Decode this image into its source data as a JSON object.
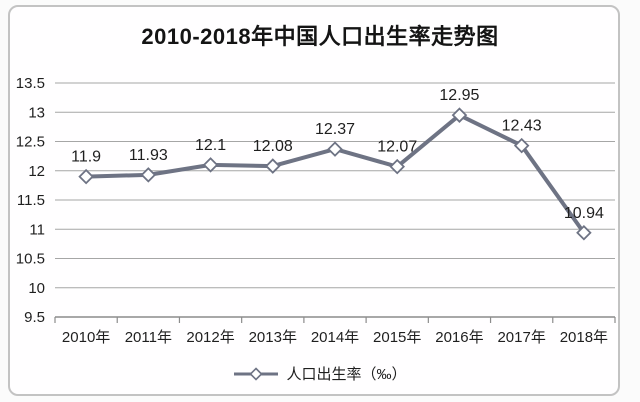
{
  "chart_data": {
    "type": "line",
    "title": "2010-2018年中国人口出生率走势图",
    "categories": [
      "2010年",
      "2011年",
      "2012年",
      "2013年",
      "2014年",
      "2015年",
      "2016年",
      "2017年",
      "2018年"
    ],
    "series": [
      {
        "name": "人口出生率（‰）",
        "values": [
          11.9,
          11.93,
          12.1,
          12.08,
          12.37,
          12.07,
          12.95,
          12.43,
          10.94
        ]
      }
    ],
    "data_labels": [
      "11.9",
      "11.93",
      "12.1",
      "12.08",
      "12.37",
      "12.07",
      "12.95",
      "12.43",
      "10.94"
    ],
    "ylim": [
      9.5,
      13.5
    ],
    "ytick_step": 0.5,
    "ytick_labels": [
      "9.5",
      "10",
      "10.5",
      "11",
      "11.5",
      "12",
      "12.5",
      "13",
      "13.5"
    ],
    "grid": true,
    "legend_position": "bottom",
    "marker": "diamond-open",
    "colors": {
      "line": "#6e7384",
      "marker_fill": "#ffffff",
      "grid": "#a6a6a6",
      "axis": "#8c8c8c",
      "text": "#1f1f1f",
      "card_border": "#c3c3c3",
      "background": "#fffeff"
    }
  }
}
